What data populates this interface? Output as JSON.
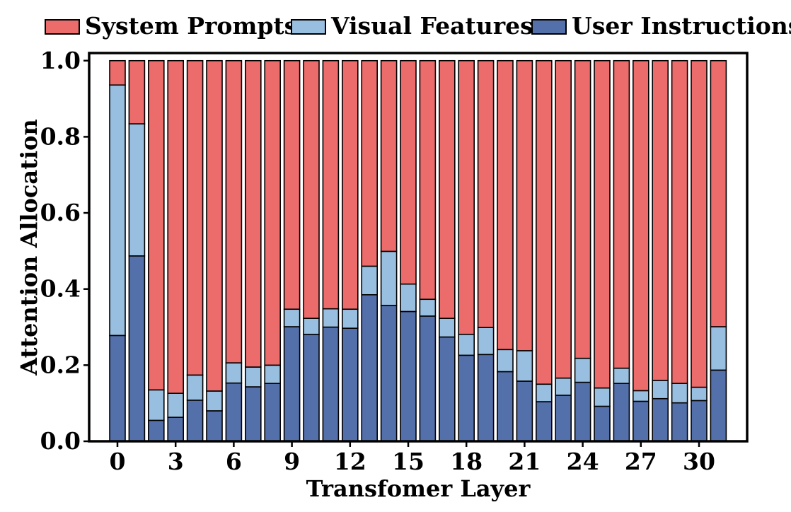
{
  "chart_data": {
    "type": "bar",
    "stacked": true,
    "xlabel": "Transfomer Layer",
    "ylabel": "Attention Allocation",
    "ylim": [
      0,
      1.02
    ],
    "yticks": [
      "0.0",
      "0.2",
      "0.4",
      "0.6",
      "0.8",
      "1.0"
    ],
    "ytick_values": [
      0,
      0.2,
      0.4,
      0.6,
      0.8,
      1.0
    ],
    "xticks": [
      "0",
      "3",
      "6",
      "9",
      "12",
      "15",
      "18",
      "21",
      "24",
      "27",
      "30"
    ],
    "xtick_values": [
      0,
      3,
      6,
      9,
      12,
      15,
      18,
      21,
      24,
      27,
      30
    ],
    "categories": [
      0,
      1,
      2,
      3,
      4,
      5,
      6,
      7,
      8,
      9,
      10,
      11,
      12,
      13,
      14,
      15,
      16,
      17,
      18,
      19,
      20,
      21,
      22,
      23,
      24,
      25,
      26,
      27,
      28,
      29,
      30,
      31
    ],
    "legend_position": "top",
    "series": [
      {
        "name": "User Instructions",
        "color": "#5470AB",
        "values": [
          0.278,
          0.487,
          0.055,
          0.063,
          0.108,
          0.08,
          0.153,
          0.143,
          0.152,
          0.301,
          0.281,
          0.3,
          0.297,
          0.385,
          0.357,
          0.341,
          0.329,
          0.274,
          0.226,
          0.228,
          0.183,
          0.158,
          0.104,
          0.121,
          0.155,
          0.092,
          0.152,
          0.105,
          0.112,
          0.101,
          0.107,
          0.187
        ]
      },
      {
        "name": "Visual Features",
        "color": "#99BFE0",
        "values": [
          0.658,
          0.347,
          0.08,
          0.063,
          0.066,
          0.052,
          0.053,
          0.052,
          0.048,
          0.046,
          0.042,
          0.048,
          0.05,
          0.075,
          0.142,
          0.072,
          0.044,
          0.049,
          0.055,
          0.071,
          0.058,
          0.08,
          0.046,
          0.045,
          0.063,
          0.048,
          0.04,
          0.028,
          0.048,
          0.051,
          0.035,
          0.114
        ]
      },
      {
        "name": "System Prompts",
        "color": "#EC6B6B",
        "values": [
          0.064,
          0.166,
          0.865,
          0.874,
          0.826,
          0.868,
          0.794,
          0.805,
          0.8,
          0.653,
          0.677,
          0.652,
          0.653,
          0.54,
          0.501,
          0.587,
          0.627,
          0.677,
          0.719,
          0.701,
          0.759,
          0.762,
          0.85,
          0.834,
          0.782,
          0.86,
          0.808,
          0.867,
          0.84,
          0.848,
          0.858,
          0.699
        ]
      }
    ],
    "legend_order": [
      "System Prompts",
      "Visual Features",
      "User Instructions"
    ]
  }
}
